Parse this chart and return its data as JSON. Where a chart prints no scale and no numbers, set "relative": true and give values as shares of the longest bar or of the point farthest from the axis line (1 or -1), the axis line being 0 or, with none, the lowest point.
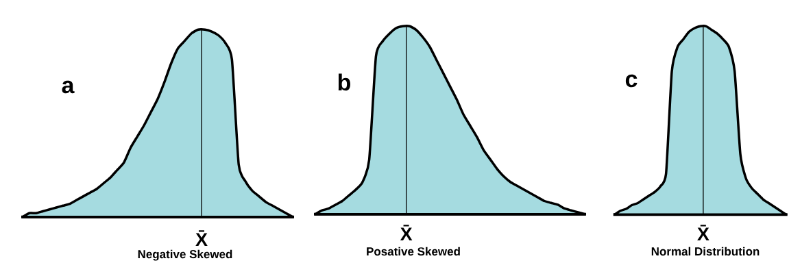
{
  "chart_data": [
    {
      "type": "area",
      "title": "a",
      "xlabel": "Negative Skewed",
      "categories": [
        null,
        null,
        null,
        null,
        null,
        null,
        null,
        null,
        null,
        null,
        null,
        null,
        null,
        null,
        null,
        null,
        null,
        null,
        null,
        null,
        null,
        null,
        null,
        null,
        null,
        null,
        null,
        null,
        null,
        null,
        null,
        null,
        null,
        null,
        null,
        null,
        null,
        null,
        null,
        null,
        null
      ],
      "values": [
        0,
        0.02,
        0.02,
        0.03,
        0.04,
        0.05,
        0.06,
        0.07,
        0.09,
        0.11,
        0.13,
        0.15,
        0.18,
        0.21,
        0.25,
        0.29,
        0.37,
        0.43,
        0.49,
        0.56,
        0.63,
        0.72,
        0.82,
        0.9,
        0.94,
        0.98,
        1,
        1,
        0.99,
        0.97,
        0.93,
        0.84,
        0.28,
        0.19,
        0.14,
        0.11,
        0.08,
        0.06,
        0.04,
        0.02,
        0
      ],
      "color": "#a5dbe0",
      "relative": true,
      "annotations": [
        "X̄"
      ]
    },
    {
      "type": "area",
      "title": "b",
      "xlabel": "Posative Skewed",
      "categories": [
        null,
        null,
        null,
        null,
        null,
        null,
        null,
        null,
        null,
        null,
        null,
        null,
        null,
        null,
        null,
        null,
        null,
        null,
        null,
        null,
        null,
        null,
        null,
        null,
        null,
        null,
        null,
        null,
        null,
        null,
        null,
        null,
        null,
        null,
        null,
        null,
        null,
        null,
        null,
        null,
        null
      ],
      "values": [
        0,
        0.02,
        0.03,
        0.05,
        0.07,
        0.1,
        0.13,
        0.17,
        0.29,
        0.84,
        0.92,
        0.96,
        0.99,
        1,
        1,
        0.98,
        0.94,
        0.89,
        0.82,
        0.75,
        0.68,
        0.61,
        0.53,
        0.47,
        0.41,
        0.34,
        0.29,
        0.24,
        0.2,
        0.17,
        0.15,
        0.13,
        0.11,
        0.09,
        0.07,
        0.06,
        0.05,
        0.03,
        0.02,
        0.01,
        0
      ],
      "color": "#a5dbe0",
      "relative": true,
      "annotations": [
        "X̄"
      ]
    },
    {
      "type": "area",
      "title": "c",
      "xlabel": "Normal Distribution",
      "categories": [
        null,
        null,
        null,
        null,
        null,
        null,
        null,
        null,
        null,
        null,
        null,
        null,
        null,
        null,
        null,
        null,
        null,
        null,
        null,
        null,
        null,
        null,
        null,
        null,
        null,
        null,
        null,
        null,
        null,
        null,
        null
      ],
      "values": [
        0,
        0.02,
        0.03,
        0.05,
        0.06,
        0.08,
        0.1,
        0.12,
        0.15,
        0.22,
        0.76,
        0.89,
        0.93,
        0.97,
        0.99,
        1,
        1,
        0.98,
        0.96,
        0.93,
        0.89,
        0.76,
        0.32,
        0.19,
        0.14,
        0.11,
        0.08,
        0.06,
        0.04,
        0.02,
        0
      ],
      "color": "#a5dbe0",
      "relative": true,
      "annotations": [
        "X̄"
      ]
    }
  ]
}
